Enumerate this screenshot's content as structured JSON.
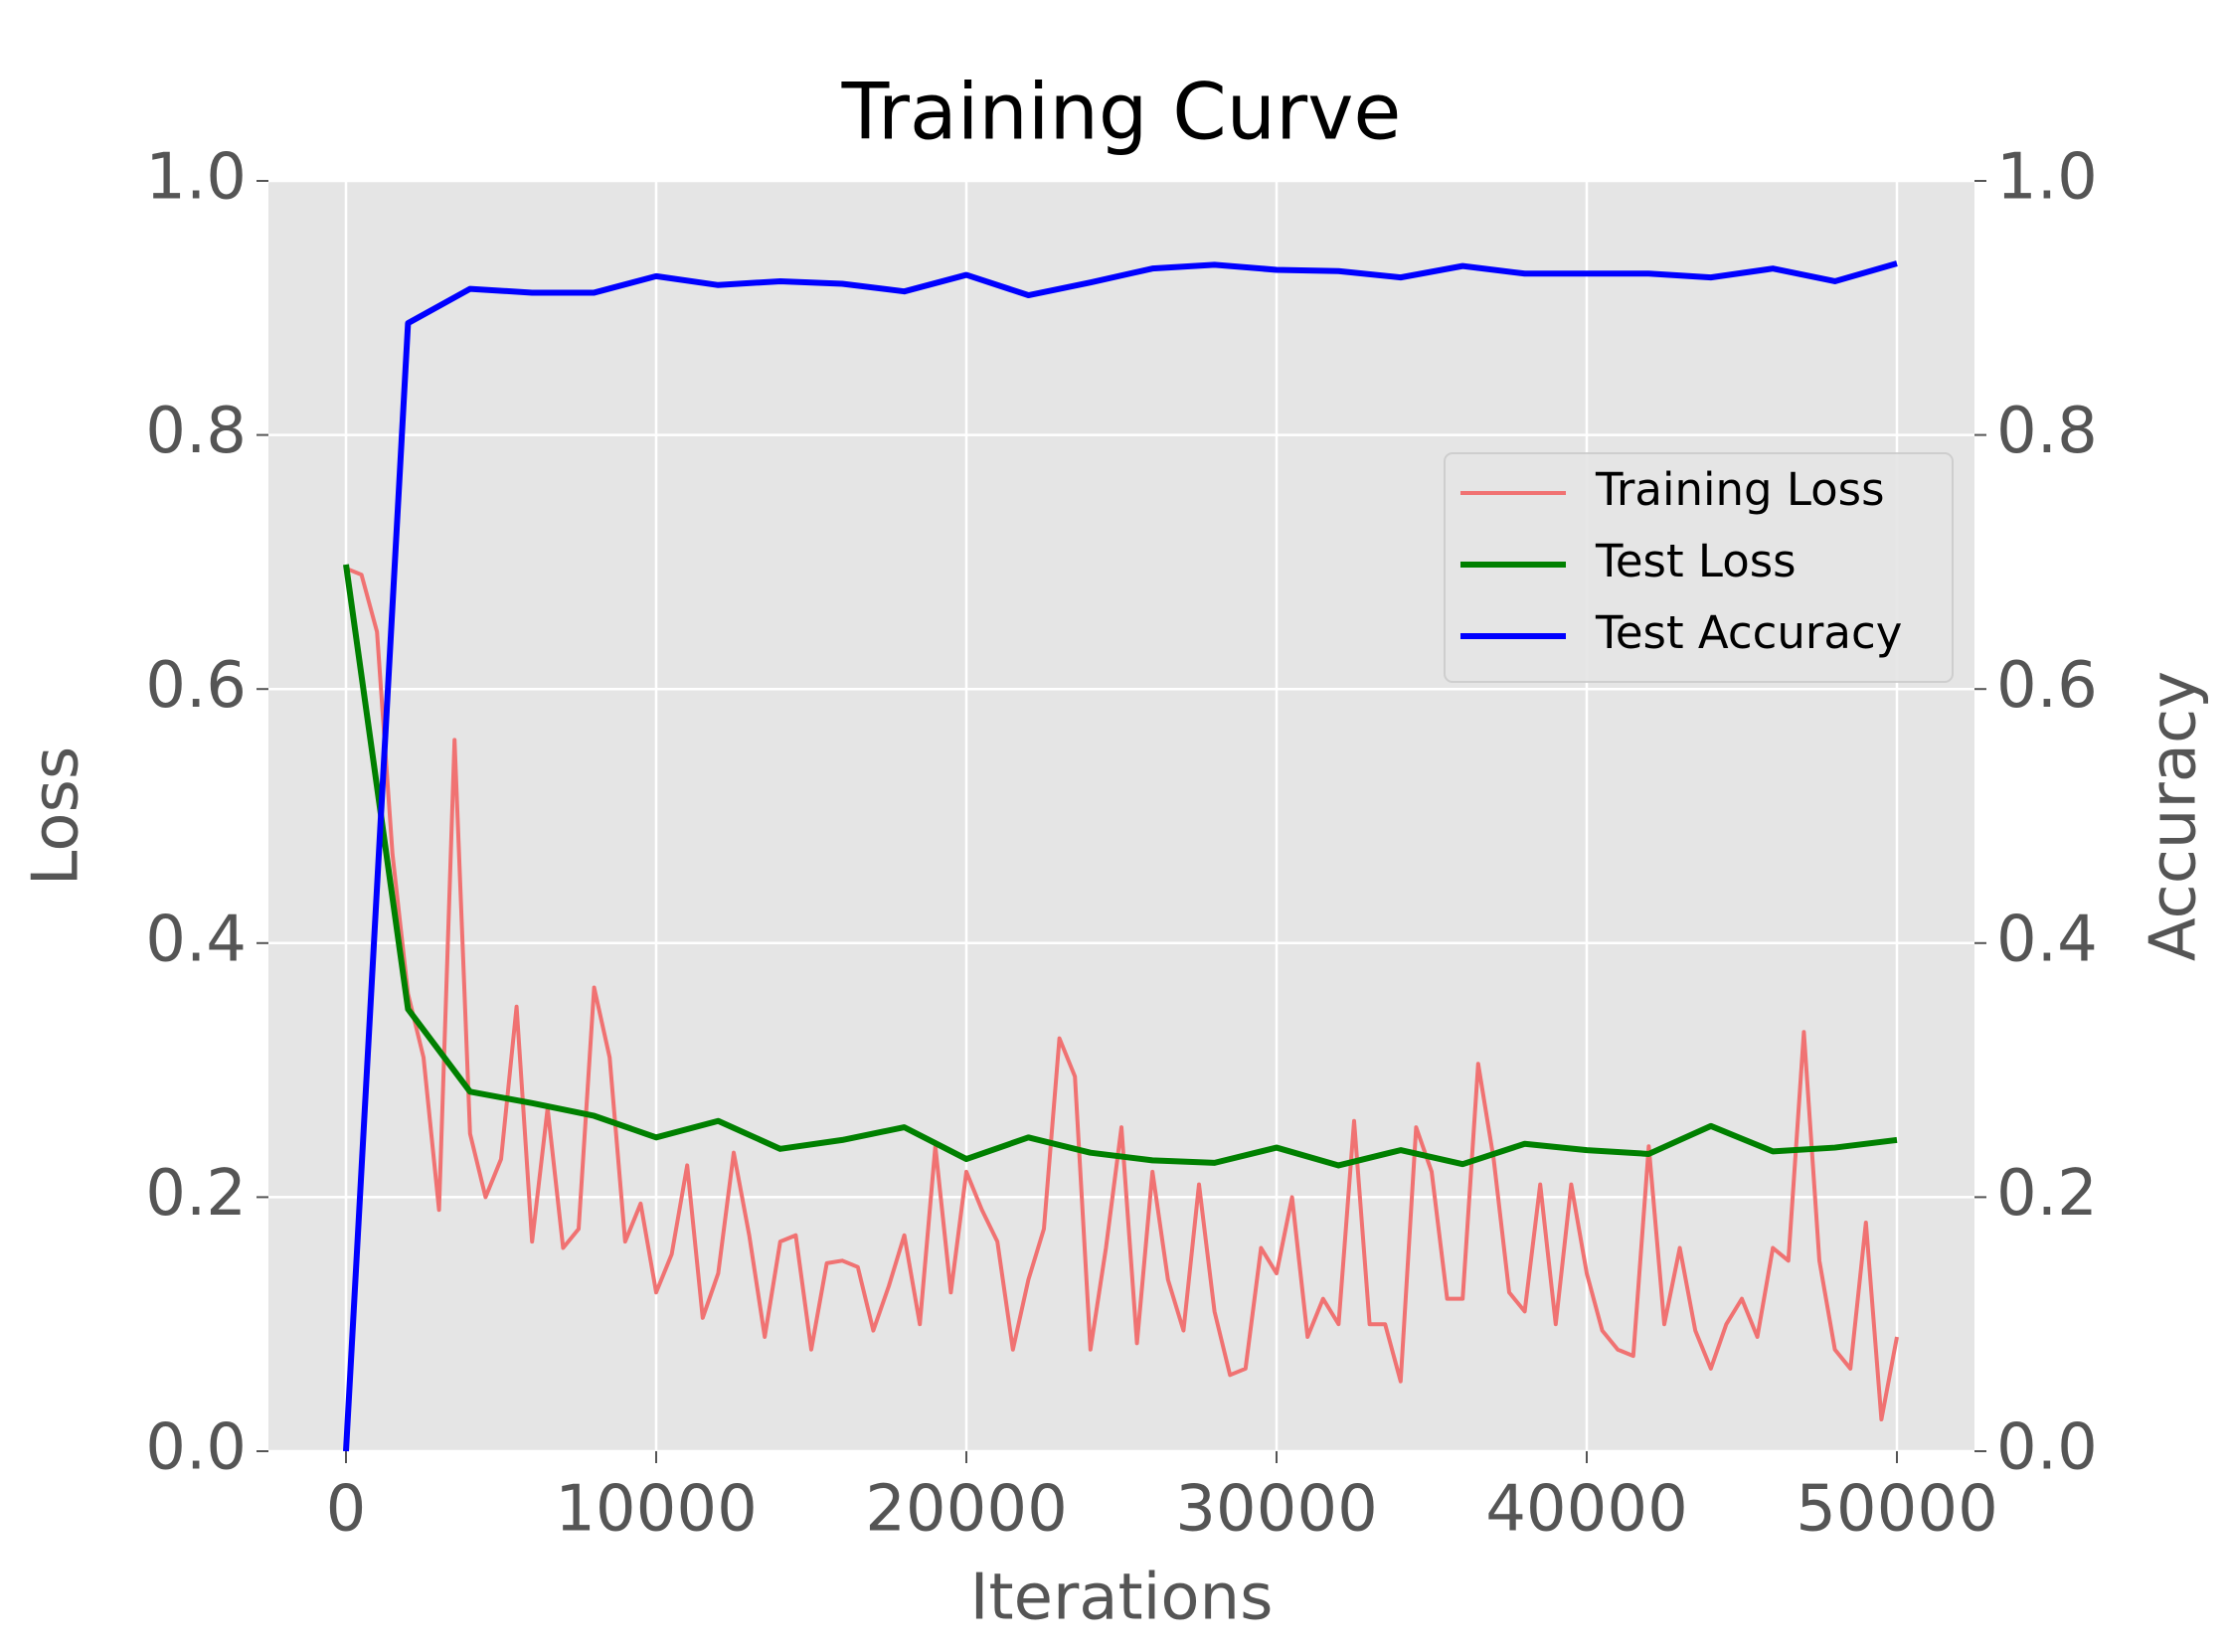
{
  "chart_data": {
    "type": "line",
    "title": "Training Curve",
    "x_label": "Iterations",
    "y_label": "Loss",
    "y2_label": "Accuracy",
    "xlim": [
      -2500,
      52500
    ],
    "xticks": [
      0,
      10000,
      20000,
      30000,
      40000,
      50000
    ],
    "ylim": [
      0,
      1
    ],
    "yticks": [
      {
        "value": 0,
        "label": "0.0"
      },
      0.2,
      0.4,
      0.6,
      0.8,
      {
        "value": 1,
        "label": "1.0"
      }
    ],
    "y2lim": [
      0,
      1
    ],
    "y2ticks": [
      {
        "value": 0,
        "label": "0.0"
      },
      0.2,
      0.4,
      0.6,
      0.8,
      {
        "value": 1,
        "label": "1.0"
      }
    ],
    "grid": true,
    "legend": "center right",
    "series": [
      {
        "name": "Training Loss",
        "color": "#f07272",
        "x": [
          0,
          500,
          1000,
          1500,
          2000,
          2500,
          3000,
          3500,
          4000,
          4500,
          5000,
          5500,
          6000,
          6500,
          7000,
          7500,
          8000,
          8500,
          9000,
          9500,
          10000,
          10500,
          11000,
          11500,
          12000,
          12500,
          13000,
          13500,
          14000,
          14500,
          15000,
          15500,
          16000,
          16500,
          17000,
          17500,
          18000,
          18500,
          19000,
          19500,
          20000,
          20500,
          21000,
          21500,
          22000,
          22500,
          23000,
          23500,
          24000,
          24500,
          25000,
          25500,
          26000,
          26500,
          27000,
          27500,
          28000,
          28500,
          29000,
          29500,
          30000,
          30500,
          31000,
          31500,
          32000,
          32500,
          33000,
          33500,
          34000,
          34500,
          35000,
          35500,
          36000,
          36500,
          37000,
          37500,
          38000,
          38500,
          39000,
          39500,
          40000,
          40500,
          41000,
          41500,
          42000,
          42500,
          43000,
          43500,
          44000,
          44500,
          45000,
          45500,
          46000,
          46500,
          47000,
          47500,
          48000,
          48500,
          49000,
          49500,
          50000
        ],
        "values": [
          0.695,
          0.69,
          0.645,
          0.47,
          0.36,
          0.31,
          0.19,
          0.56,
          0.25,
          0.2,
          0.23,
          0.35,
          0.165,
          0.27,
          0.16,
          0.175,
          0.365,
          0.31,
          0.165,
          0.195,
          0.125,
          0.155,
          0.225,
          0.105,
          0.14,
          0.235,
          0.17,
          0.09,
          0.165,
          0.17,
          0.08,
          0.148,
          0.15,
          0.145,
          0.095,
          0.13,
          0.17,
          0.1,
          0.24,
          0.125,
          0.22,
          0.19,
          0.165,
          0.08,
          0.135,
          0.175,
          0.325,
          0.295,
          0.08,
          0.16,
          0.255,
          0.085,
          0.22,
          0.135,
          0.095,
          0.21,
          0.11,
          0.06,
          0.065,
          0.16,
          0.14,
          0.2,
          0.09,
          0.12,
          0.1,
          0.26,
          0.1,
          0.1,
          0.055,
          0.255,
          0.22,
          0.12,
          0.12,
          0.305,
          0.23,
          0.125,
          0.11,
          0.21,
          0.1,
          0.21,
          0.14,
          0.095,
          0.08,
          0.075,
          0.24,
          0.1,
          0.16,
          0.095,
          0.065,
          0.1,
          0.12,
          0.09,
          0.16,
          0.15,
          0.33,
          0.15,
          0.08,
          0.065,
          0.18,
          0.025,
          0.09
        ]
      },
      {
        "name": "Test Loss",
        "color": "#008000",
        "x": [
          0,
          2000,
          4000,
          6000,
          8000,
          10000,
          12000,
          14000,
          16000,
          18000,
          20000,
          22000,
          24000,
          26000,
          28000,
          30000,
          32000,
          34000,
          36000,
          38000,
          40000,
          42000,
          44000,
          46000,
          48000,
          50000
        ],
        "values": [
          0.698,
          0.348,
          0.283,
          0.274,
          0.264,
          0.247,
          0.26,
          0.238,
          0.245,
          0.255,
          0.23,
          0.247,
          0.235,
          0.229,
          0.227,
          0.239,
          0.225,
          0.237,
          0.226,
          0.242,
          0.237,
          0.234,
          0.256,
          0.236,
          0.239,
          0.245
        ]
      },
      {
        "name": "Test Accuracy",
        "color": "#0000ff",
        "axis": "y2",
        "x": [
          0,
          2000,
          4000,
          6000,
          8000,
          10000,
          12000,
          14000,
          16000,
          18000,
          20000,
          22000,
          24000,
          26000,
          28000,
          30000,
          32000,
          34000,
          36000,
          38000,
          40000,
          42000,
          44000,
          46000,
          48000,
          50000
        ],
        "values": [
          0.0,
          0.888,
          0.915,
          0.912,
          0.912,
          0.925,
          0.918,
          0.921,
          0.919,
          0.913,
          0.926,
          0.91,
          0.92,
          0.931,
          0.934,
          0.93,
          0.929,
          0.924,
          0.933,
          0.927,
          0.927,
          0.927,
          0.924,
          0.931,
          0.921,
          0.935
        ]
      }
    ]
  }
}
